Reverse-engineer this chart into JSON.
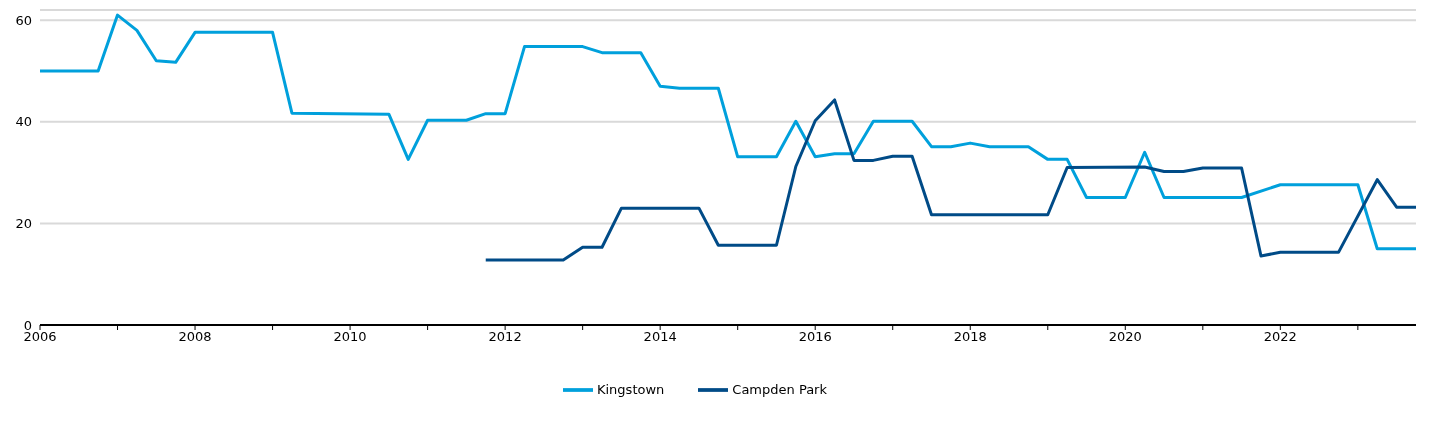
{
  "chart_data": {
    "type": "line",
    "xlim": [
      2006,
      2023.75
    ],
    "xticks": [
      2006,
      {
        "value": 2007,
        "label": null
      },
      2008,
      {
        "value": 2009,
        "label": null
      },
      2010,
      {
        "value": 2011,
        "label": null
      },
      2012,
      {
        "value": 2013,
        "label": null
      },
      2014,
      {
        "value": 2015,
        "label": null
      },
      2016,
      {
        "value": 2017,
        "label": null
      },
      2018,
      {
        "value": 2019,
        "label": null
      },
      2020,
      {
        "value": 2021,
        "label": null
      },
      2022,
      {
        "value": 2023,
        "label": null
      }
    ],
    "ylim": [
      0,
      62
    ],
    "yticks": [
      0,
      20,
      40,
      60
    ],
    "grid": "y",
    "legend": "bottom",
    "marker": "none",
    "line_style": "solid",
    "series": [
      {
        "name": "Kingstown",
        "color": "#00a0dc",
        "x": [
          2006,
          2006.75,
          2007,
          2007.25,
          2007.5,
          2007.75,
          2008,
          2009,
          2009.25,
          2010.5,
          2010.75,
          2011,
          2011.5,
          2011.75,
          2012,
          2012.25,
          2013,
          2013.25,
          2013.75,
          2014,
          2014.25,
          2014.75,
          2015,
          2015.5,
          2015.75,
          2016,
          2016.25,
          2016.5,
          2016.75,
          2017.25,
          2017.5,
          2017.75,
          2018,
          2018.25,
          2018.75,
          2019,
          2019.25,
          2019.5,
          2020,
          2020.25,
          2020.5,
          2021.5,
          2022,
          2023,
          2023.25,
          2023.75
        ],
        "values": [
          50,
          50,
          61,
          58,
          52,
          51.7,
          57.6,
          57.6,
          41.7,
          41.5,
          32.6,
          40.3,
          40.3,
          41.6,
          41.6,
          54.8,
          54.8,
          53.6,
          53.6,
          47,
          46.6,
          46.6,
          33.1,
          33.1,
          40.1,
          33.1,
          33.7,
          33.7,
          40.1,
          40.1,
          35.1,
          35.1,
          35.8,
          35.1,
          35.1,
          32.6,
          32.6,
          25.1,
          25.1,
          34,
          25.1,
          25.1,
          27.6,
          27.6,
          15,
          15
        ]
      },
      {
        "name": "Campden Park",
        "color": "#004b87",
        "x": [
          2011.75,
          2012.75,
          2013,
          2013.25,
          2013.5,
          2014.5,
          2014.75,
          2015.5,
          2015.75,
          2016,
          2016.25,
          2016.5,
          2016.75,
          2017,
          2017.25,
          2017.5,
          2019,
          2019.25,
          2020.25,
          2020.5,
          2020.75,
          2021,
          2021.5,
          2021.75,
          2022,
          2022.75,
          2023.25,
          2023.5,
          2023.75
        ],
        "values": [
          12.8,
          12.8,
          15.3,
          15.3,
          23,
          23,
          15.7,
          15.7,
          31.2,
          40.2,
          44.3,
          32.4,
          32.4,
          33.2,
          33.2,
          21.7,
          21.7,
          31,
          31.1,
          30.2,
          30.2,
          30.9,
          30.9,
          13.6,
          14.3,
          14.3,
          28.6,
          23.2,
          23.2
        ]
      }
    ]
  }
}
